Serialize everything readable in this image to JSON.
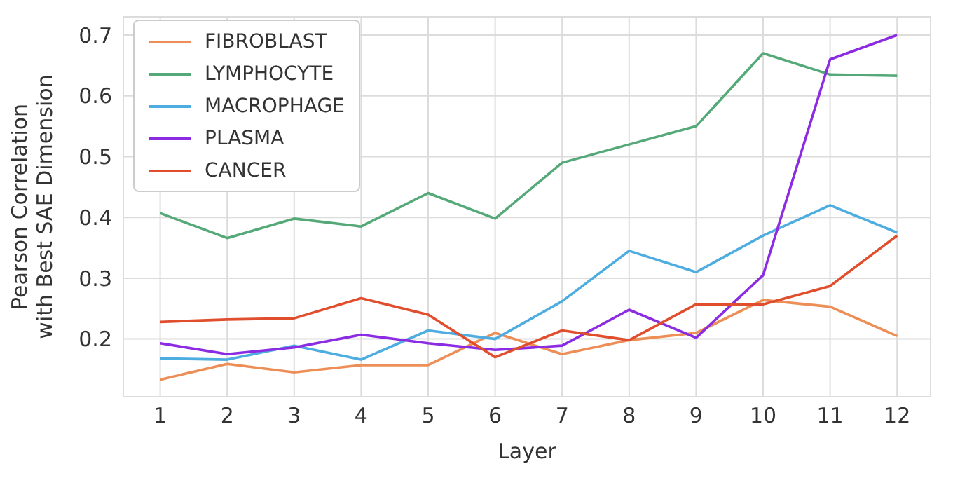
{
  "chart_data": {
    "type": "line",
    "xlabel": "Layer",
    "ylabel": "Pearson Correlation\nwith Best SAE Dimension",
    "x": [
      1,
      2,
      3,
      4,
      5,
      6,
      7,
      8,
      9,
      10,
      11,
      12
    ],
    "series": [
      {
        "name": "FIBROBLAST",
        "color": "#ee8e57",
        "values": [
          0.133,
          0.159,
          0.145,
          0.157,
          0.157,
          0.21,
          0.175,
          0.198,
          0.21,
          0.264,
          0.253,
          0.205
        ]
      },
      {
        "name": "LYMPHOCYTE",
        "color": "#55a978",
        "values": [
          0.407,
          0.366,
          0.398,
          0.385,
          0.44,
          0.398,
          0.49,
          0.52,
          0.55,
          0.67,
          0.635,
          0.633
        ]
      },
      {
        "name": "MACROPHAGE",
        "color": "#4eade0",
        "values": [
          0.168,
          0.166,
          0.189,
          0.166,
          0.214,
          0.2,
          0.262,
          0.345,
          0.31,
          0.37,
          0.42,
          0.375
        ]
      },
      {
        "name": "PLASMA",
        "color": "#8b2be2",
        "values": [
          0.193,
          0.175,
          0.186,
          0.207,
          0.193,
          0.182,
          0.189,
          0.248,
          0.202,
          0.305,
          0.66,
          0.7
        ]
      },
      {
        "name": "CANCER",
        "color": "#e04e2e",
        "values": [
          0.228,
          0.232,
          0.234,
          0.267,
          0.24,
          0.17,
          0.214,
          0.198,
          0.257,
          0.257,
          0.287,
          0.37
        ]
      }
    ],
    "xlim": [
      0.45,
      12.5
    ],
    "xticks": [
      1,
      2,
      3,
      4,
      5,
      6,
      7,
      8,
      9,
      10,
      11,
      12
    ],
    "ylim": [
      0.105,
      0.73
    ],
    "yticks": [
      0.2,
      0.3,
      0.4,
      0.5,
      0.6,
      0.7
    ],
    "grid": true,
    "legend": "top left",
    "marker": "none",
    "line_style": "solid"
  }
}
